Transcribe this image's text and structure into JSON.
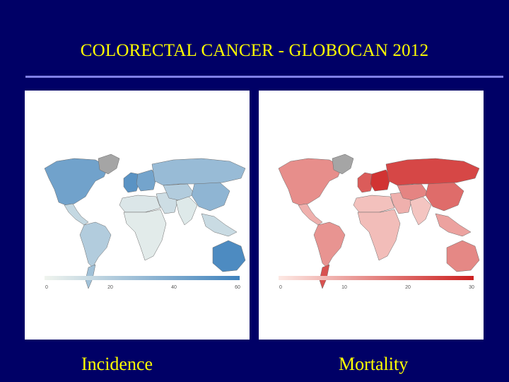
{
  "title": "COLORECTAL CANCER - GLOBOCAN 2012",
  "colors": {
    "background": "#000066",
    "title": "#ffff00",
    "rule": "#8080e6"
  },
  "maps": [
    {
      "caption": "Incidence",
      "legend_ticks": [
        "0",
        "20",
        "40",
        "60"
      ],
      "legend_colors": [
        "#f0f4ee",
        "#3f82bd"
      ],
      "no_data_color": "#a5a5a5",
      "region_levels": {
        "north_america": 0.72,
        "greenland": null,
        "central_america": 0.25,
        "south_america": 0.35,
        "southern_south_america": 0.45,
        "western_europe": 0.85,
        "eastern_europe": 0.7,
        "russia": 0.5,
        "north_africa": 0.12,
        "sub_saharan_africa": 0.08,
        "middle_east": 0.2,
        "central_asia": 0.35,
        "south_asia": 0.1,
        "east_asia": 0.55,
        "southeast_asia": 0.22,
        "australia": 0.92
      }
    },
    {
      "caption": "Mortality",
      "legend_ticks": [
        "0",
        "10",
        "20",
        "30"
      ],
      "legend_colors": [
        "#fde9e4",
        "#cc1f1f"
      ],
      "no_data_color": "#a5a5a5",
      "region_levels": {
        "north_america": 0.45,
        "greenland": null,
        "central_america": 0.28,
        "south_america": 0.42,
        "southern_south_america": 0.75,
        "western_europe": 0.7,
        "eastern_europe": 0.9,
        "russia": 0.8,
        "north_africa": 0.2,
        "sub_saharan_africa": 0.22,
        "middle_east": 0.28,
        "central_asia": 0.5,
        "south_asia": 0.18,
        "east_asia": 0.62,
        "southeast_asia": 0.35,
        "australia": 0.48
      }
    }
  ]
}
